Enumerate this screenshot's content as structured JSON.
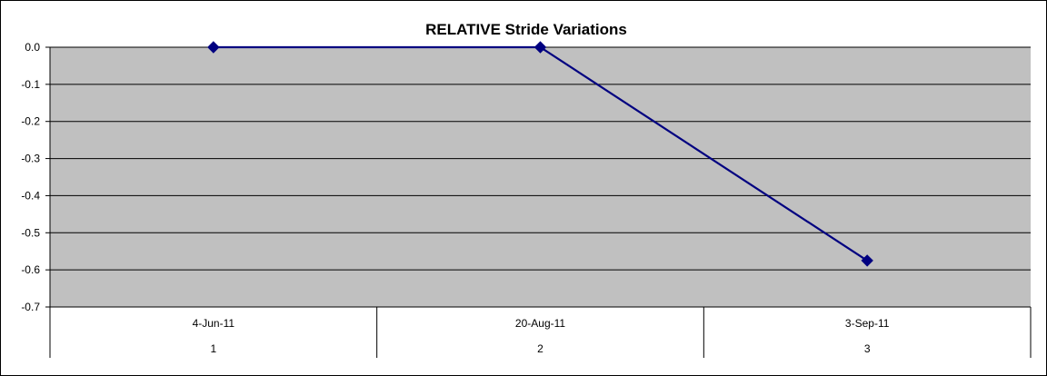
{
  "chart_data": {
    "type": "line",
    "title": "RELATIVE Stride Variations",
    "xlabel": "",
    "ylabel": "",
    "categories": [
      "4-Jun-11",
      "20-Aug-11",
      "3-Sep-11"
    ],
    "category_index_labels": [
      "1",
      "2",
      "3"
    ],
    "series": [
      {
        "values": [
          0.0,
          0.0,
          -0.575
        ],
        "color": "#000080",
        "marker": "diamond"
      }
    ],
    "ylim": [
      -0.7,
      0.0
    ],
    "yticks": [
      0.0,
      -0.1,
      -0.2,
      -0.3,
      -0.4,
      -0.5,
      -0.6,
      -0.7
    ],
    "ytick_labels": [
      "0.0",
      "-0.1",
      "-0.2",
      "-0.3",
      "-0.4",
      "-0.5",
      "-0.6",
      "-0.7"
    ],
    "grid": true,
    "legend": "none",
    "colors": {
      "plot_background": "#c0c0c0",
      "gridline": "#000000",
      "series_line": "#000080"
    }
  }
}
